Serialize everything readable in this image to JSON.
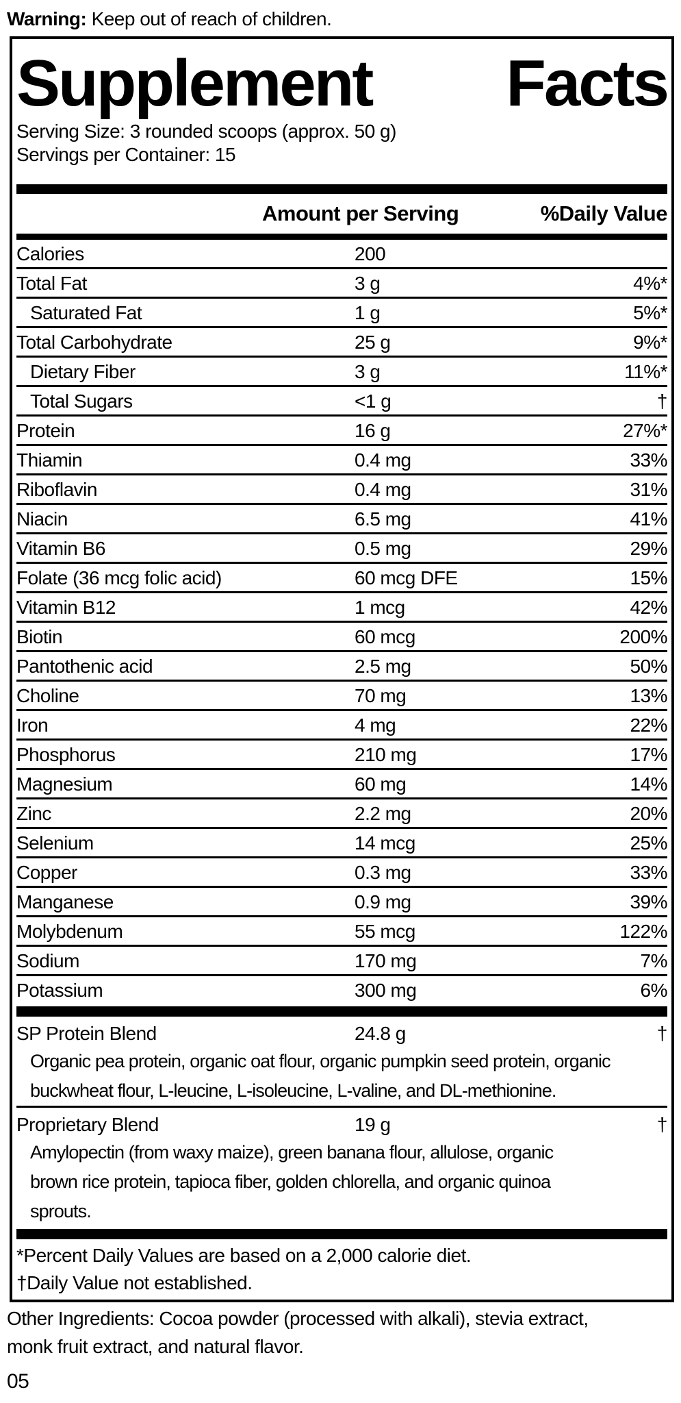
{
  "warning": {
    "label": "Warning:",
    "text": "Keep out of reach of children."
  },
  "panel": {
    "title": {
      "word1": "Supplement",
      "word2": "Facts"
    },
    "serving_size": "Serving Size: 3 rounded scoops (approx. 50 g)",
    "servings_per_container": "Servings per Container: 15",
    "columns": {
      "amount": "Amount per Serving",
      "dv": "%Daily Value"
    },
    "rows": [
      {
        "name": "Calories",
        "amount": "200",
        "dv": "",
        "indent": false
      },
      {
        "name": "Total Fat",
        "amount": "3 g",
        "dv": "4%*",
        "indent": false
      },
      {
        "name": "Saturated Fat",
        "amount": "1 g",
        "dv": "5%*",
        "indent": true
      },
      {
        "name": "Total Carbohydrate",
        "amount": "25 g",
        "dv": "9%*",
        "indent": false
      },
      {
        "name": "Dietary Fiber",
        "amount": "3 g",
        "dv": "11%*",
        "indent": true
      },
      {
        "name": "Total Sugars",
        "amount": "<1 g",
        "dv": "†",
        "indent": true
      },
      {
        "name": "Protein",
        "amount": "16 g",
        "dv": "27%*",
        "indent": false
      },
      {
        "name": "Thiamin",
        "amount": "0.4 mg",
        "dv": "33%",
        "indent": false
      },
      {
        "name": "Riboflavin",
        "amount": "0.4 mg",
        "dv": "31%",
        "indent": false
      },
      {
        "name": "Niacin",
        "amount": "6.5 mg",
        "dv": "41%",
        "indent": false
      },
      {
        "name": "Vitamin B6",
        "amount": "0.5 mg",
        "dv": "29%",
        "indent": false
      },
      {
        "name": "Folate (36 mcg folic acid)",
        "amount": "60 mcg DFE",
        "dv": "15%",
        "indent": false
      },
      {
        "name": "Vitamin B12",
        "amount": "1 mcg",
        "dv": "42%",
        "indent": false
      },
      {
        "name": "Biotin",
        "amount": "60 mcg",
        "dv": "200%",
        "indent": false
      },
      {
        "name": "Pantothenic acid",
        "amount": "2.5 mg",
        "dv": "50%",
        "indent": false
      },
      {
        "name": "Choline",
        "amount": "70 mg",
        "dv": "13%",
        "indent": false
      },
      {
        "name": "Iron",
        "amount": "4 mg",
        "dv": "22%",
        "indent": false
      },
      {
        "name": "Phosphorus",
        "amount": "210 mg",
        "dv": "17%",
        "indent": false
      },
      {
        "name": "Magnesium",
        "amount": "60 mg",
        "dv": "14%",
        "indent": false
      },
      {
        "name": "Zinc",
        "amount": "2.2 mg",
        "dv": "20%",
        "indent": false
      },
      {
        "name": "Selenium",
        "amount": "14 mcg",
        "dv": "25%",
        "indent": false
      },
      {
        "name": "Copper",
        "amount": "0.3 mg",
        "dv": "33%",
        "indent": false
      },
      {
        "name": "Manganese",
        "amount": "0.9 mg",
        "dv": "39%",
        "indent": false
      },
      {
        "name": "Molybdenum",
        "amount": "55 mcg",
        "dv": "122%",
        "indent": false
      },
      {
        "name": "Sodium",
        "amount": "170 mg",
        "dv": "7%",
        "indent": false
      },
      {
        "name": "Potassium",
        "amount": "300 mg",
        "dv": "6%",
        "indent": false
      }
    ],
    "blends": [
      {
        "name": "SP Protein Blend",
        "amount": "24.8 g",
        "dv": "†",
        "description_lines": [
          "Organic pea protein, organic oat flour, organic pumpkin seed protein, organic",
          "buckwheat flour, L-leucine, L-isoleucine, L-valine, and DL-methionine."
        ]
      },
      {
        "name": "Proprietary Blend",
        "amount": "19 g",
        "dv": "†",
        "description_lines": [
          "Amylopectin (from waxy maize), green banana flour, allulose, organic",
          "brown rice protein, tapioca fiber, golden chlorella, and organic quinoa",
          "sprouts."
        ]
      }
    ],
    "footnotes": [
      "*Percent Daily Values are based on a 2,000 calorie diet.",
      "†Daily Value not established."
    ]
  },
  "other_ingredients_lines": [
    "Other Ingredients: Cocoa powder (processed with alkali), stevia extract,",
    "monk fruit extract, and natural flavor."
  ],
  "page_number": "05",
  "colors": {
    "ink": "#000000",
    "paper": "#ffffff"
  }
}
